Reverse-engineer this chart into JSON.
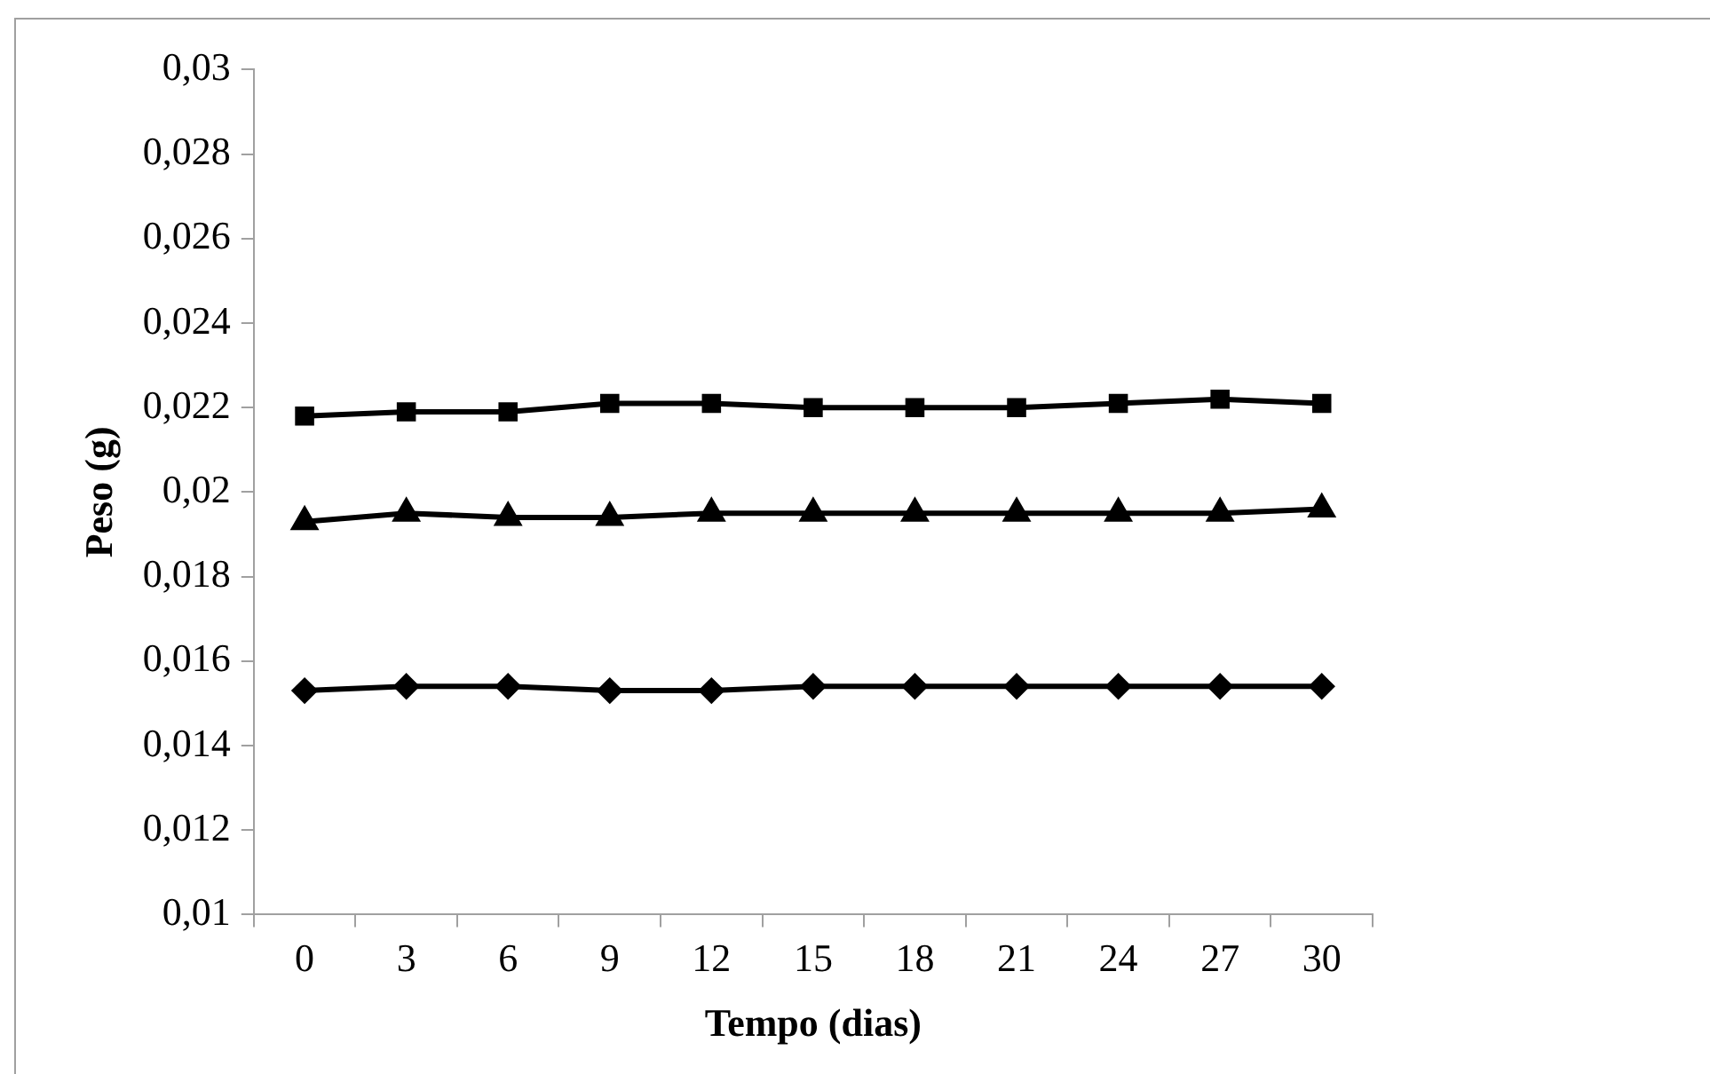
{
  "chart_data": {
    "type": "line",
    "xlabel": "Tempo (dias)",
    "ylabel": "Peso (g)",
    "categories": [
      "0",
      "3",
      "6",
      "9",
      "12",
      "15",
      "18",
      "21",
      "24",
      "27",
      "30"
    ],
    "series": [
      {
        "color": "#000000",
        "marker": "square",
        "values": [
          0.0218,
          0.0219,
          0.0219,
          0.0221,
          0.0221,
          0.022,
          0.022,
          0.022,
          0.0221,
          0.0222,
          0.0221
        ]
      },
      {
        "color": "#000000",
        "marker": "triangle",
        "values": [
          0.0193,
          0.0195,
          0.0194,
          0.0194,
          0.0195,
          0.0195,
          0.0195,
          0.0195,
          0.0195,
          0.0195,
          0.0196
        ]
      },
      {
        "color": "#000000",
        "marker": "diamond",
        "values": [
          0.0153,
          0.0154,
          0.0154,
          0.0153,
          0.0153,
          0.0154,
          0.0154,
          0.0154,
          0.0154,
          0.0154,
          0.0154
        ]
      }
    ],
    "ylim": [
      0.01,
      0.03
    ],
    "yticks": [
      {
        "value": 0.01,
        "label": "0,01"
      },
      {
        "value": 0.012,
        "label": "0,012"
      },
      {
        "value": 0.014,
        "label": "0,014"
      },
      {
        "value": 0.016,
        "label": "0,016"
      },
      {
        "value": 0.018,
        "label": "0,018"
      },
      {
        "value": 0.02,
        "label": "0,02"
      },
      {
        "value": 0.022,
        "label": "0,022"
      },
      {
        "value": 0.024,
        "label": "0,024"
      },
      {
        "value": 0.026,
        "label": "0,026"
      },
      {
        "value": 0.028,
        "label": "0,028"
      },
      {
        "value": 0.03,
        "label": "0,03"
      }
    ],
    "grid": false,
    "legend": false,
    "line_style": "solid"
  }
}
